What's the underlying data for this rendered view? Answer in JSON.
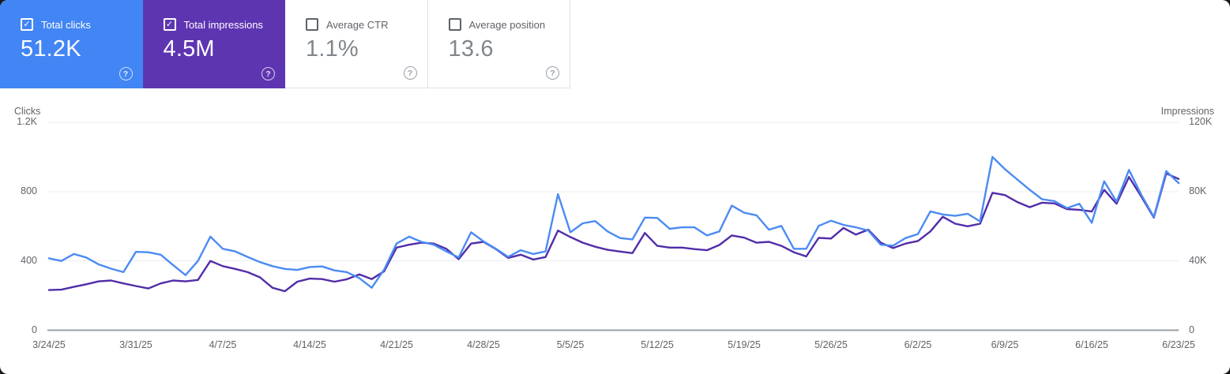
{
  "cards": [
    {
      "label": "Total clicks",
      "value": "51.2K",
      "checked": true,
      "color": "#4285f4"
    },
    {
      "label": "Total impressions",
      "value": "4.5M",
      "checked": true,
      "color": "#5e35b1"
    },
    {
      "label": "Average CTR",
      "value": "1.1%",
      "checked": false,
      "color": null
    },
    {
      "label": "Average position",
      "value": "13.6",
      "checked": false,
      "color": null
    }
  ],
  "chart_data": {
    "type": "line",
    "title": "",
    "grid": true,
    "legend_position": "none",
    "x_label_every": 7,
    "x_labels": [
      "3/24/25",
      "3/31/25",
      "4/7/25",
      "4/14/25",
      "4/21/25",
      "4/28/25",
      "5/5/25",
      "5/12/25",
      "5/19/25",
      "5/26/25",
      "6/2/25",
      "6/9/25",
      "6/16/25",
      "6/23/25"
    ],
    "left_axis": {
      "title": "Clicks",
      "max": 1200,
      "ticks": [
        "1.2K",
        "800",
        "400",
        "0"
      ]
    },
    "right_axis": {
      "title": "Impressions",
      "max": 120000,
      "ticks": [
        "120K",
        "80K",
        "40K",
        "0"
      ]
    },
    "series": [
      {
        "id": "total-clicks",
        "name": "Total clicks",
        "axis": "left",
        "color": "#4b8bf4",
        "values": [
          415,
          400,
          440,
          420,
          380,
          355,
          335,
          452,
          450,
          436,
          376,
          318,
          400,
          540,
          470,
          455,
          423,
          393,
          370,
          354,
          348,
          365,
          368,
          345,
          335,
          300,
          245,
          350,
          500,
          540,
          510,
          493,
          455,
          420,
          565,
          513,
          470,
          423,
          462,
          440,
          455,
          785,
          565,
          617,
          630,
          570,
          532,
          524,
          650,
          648,
          585,
          594,
          594,
          547,
          570,
          719,
          678,
          663,
          580,
          602,
          470,
          470,
          602,
          632,
          608,
          594,
          575,
          493,
          488,
          532,
          555,
          686,
          668,
          660,
          672,
          628,
          1000,
          930,
          870,
          811,
          756,
          745,
          705,
          730,
          620,
          860,
          742,
          925,
          780,
          654,
          918,
          849
        ]
      },
      {
        "id": "total-impressions",
        "name": "Total impressions",
        "axis": "right",
        "color": "#512da8",
        "values": [
          23200,
          23400,
          25000,
          26500,
          28200,
          28700,
          27000,
          25500,
          24100,
          27000,
          28700,
          28200,
          29000,
          40000,
          37000,
          35400,
          33500,
          30500,
          24500,
          22500,
          28000,
          29800,
          29500,
          28000,
          29400,
          32200,
          29500,
          34000,
          47700,
          49300,
          50500,
          50000,
          47000,
          41000,
          50000,
          51000,
          46800,
          41700,
          43600,
          40800,
          42200,
          57500,
          53800,
          50500,
          48200,
          46400,
          45400,
          44500,
          56100,
          48700,
          47700,
          47700,
          46800,
          46200,
          49200,
          54700,
          53400,
          50500,
          51000,
          48700,
          45000,
          42600,
          53300,
          52900,
          59000,
          55200,
          58000,
          50500,
          47400,
          50000,
          51500,
          57000,
          65500,
          61500,
          60000,
          61500,
          79300,
          78000,
          74000,
          71000,
          73600,
          73200,
          69900,
          69500,
          68500,
          81000,
          73000,
          88500,
          77000,
          65000,
          90500,
          87300
        ]
      }
    ]
  }
}
